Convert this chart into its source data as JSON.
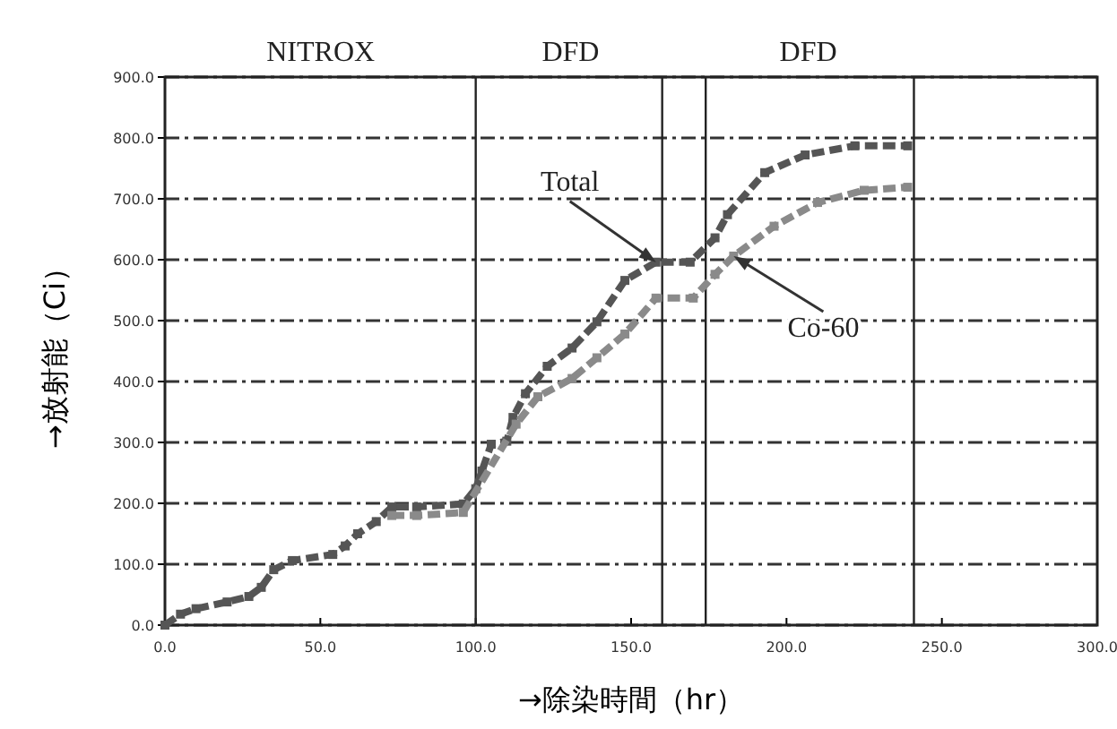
{
  "chart_data": {
    "type": "line",
    "xlabel": "→除染時間（hr）",
    "ylabel": "→放射能（Ci）",
    "xlim": [
      0,
      300
    ],
    "ylim": [
      0,
      900
    ],
    "xticks": [
      {
        "value": 0,
        "label": "0.0"
      },
      {
        "value": 50,
        "label": "50.0"
      },
      {
        "value": 100,
        "label": "100.0"
      },
      {
        "value": 150,
        "label": "150.0"
      },
      {
        "value": 200,
        "label": "200.0"
      },
      {
        "value": 250,
        "label": "250.0"
      },
      {
        "value": 300,
        "label": "300.0"
      }
    ],
    "yticks": [
      {
        "value": 0,
        "label": "0.0"
      },
      {
        "value": 100,
        "label": "100.0"
      },
      {
        "value": 200,
        "label": "200.0"
      },
      {
        "value": 300,
        "label": "300.0"
      },
      {
        "value": 400,
        "label": "400.0"
      },
      {
        "value": 500,
        "label": "500.0"
      },
      {
        "value": 600,
        "label": "600.0"
      },
      {
        "value": 700,
        "label": "700.0"
      },
      {
        "value": 800,
        "label": "800.0"
      },
      {
        "value": 900,
        "label": "900.0"
      }
    ],
    "grid": "y",
    "marker": "square",
    "line_style": "dashed",
    "series": [
      {
        "color": "#555555",
        "x": [
          0,
          5,
          10,
          20,
          27,
          31,
          35,
          41,
          54,
          58,
          62,
          68,
          73,
          81,
          96,
          100,
          102,
          105,
          110,
          112,
          116,
          123,
          131,
          139,
          148,
          158,
          169,
          177,
          181,
          193,
          206,
          222,
          239
        ],
        "values": [
          0,
          18,
          27,
          38,
          47,
          62,
          91,
          106,
          116,
          130,
          150,
          170,
          194,
          194,
          199,
          224,
          253,
          297,
          302,
          341,
          380,
          425,
          455,
          498,
          566,
          596,
          596,
          636,
          674,
          743,
          772,
          787,
          787
        ]
      },
      {
        "color": "#8a8a8a",
        "x": [
          73,
          81,
          96,
          113,
          120,
          131,
          139,
          148,
          158,
          170,
          177,
          183,
          196,
          210,
          225,
          239
        ],
        "values": [
          180,
          180,
          185,
          330,
          375,
          405,
          439,
          478,
          537,
          537,
          576,
          606,
          655,
          694,
          714,
          719
        ]
      }
    ],
    "ref_lines": [
      {
        "axis": "x",
        "value": 100
      },
      {
        "axis": "x",
        "value": 160
      },
      {
        "axis": "x",
        "value": 174
      },
      {
        "axis": "x",
        "value": 241
      }
    ],
    "annotations": [
      "NITROX",
      "DFD",
      "DFD",
      {
        "text": "Total",
        "x": 158,
        "y": 596
      },
      {
        "text": "Co-60",
        "x": 183,
        "y": 606
      }
    ]
  }
}
